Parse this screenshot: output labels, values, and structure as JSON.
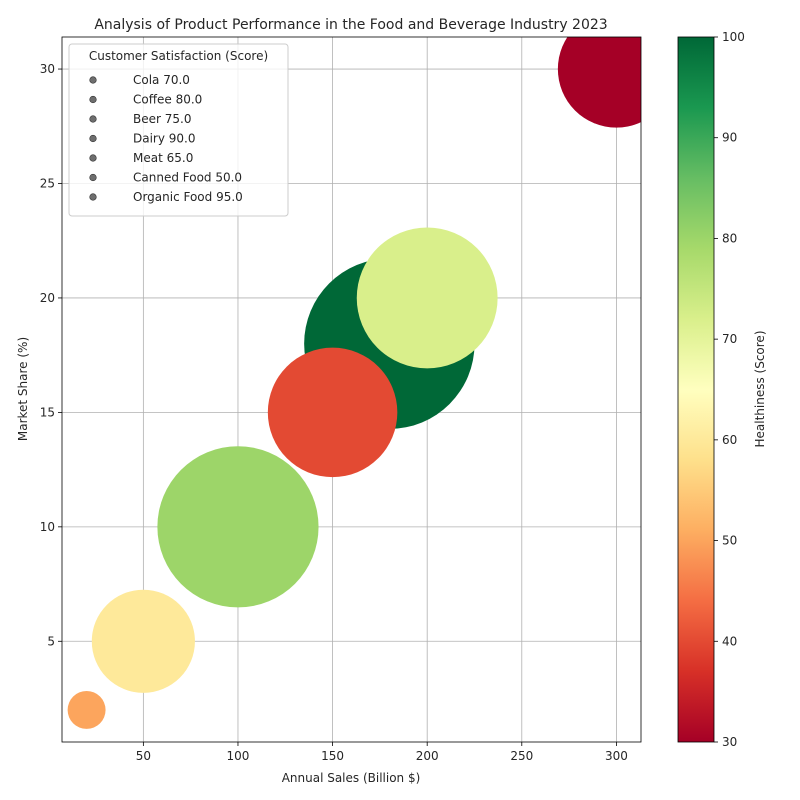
{
  "chart_data": {
    "type": "scatter",
    "title": "Analysis of Product Performance in the Food and Beverage Industry 2023",
    "xlabel": "Annual Sales (Billion $)",
    "ylabel": "Market Share (%)",
    "xlim": [
      7,
      313
    ],
    "ylim": [
      0.6,
      31.4
    ],
    "xticks": [
      50,
      100,
      150,
      200,
      250,
      300
    ],
    "yticks": [
      5,
      10,
      15,
      20,
      25,
      30
    ],
    "grid": true,
    "legend": {
      "title": "Customer Satisfaction (Score)",
      "placement": "top-left"
    },
    "colorbar": {
      "label": "Healthiness (Score)",
      "range": [
        30,
        100
      ],
      "ticks": [
        30,
        40,
        50,
        60,
        70,
        80,
        90,
        100
      ],
      "colormap": [
        "#a50026",
        "#d73027",
        "#f46d43",
        "#fdae61",
        "#fee08b",
        "#ffffbf",
        "#d9ef8b",
        "#a6d96a",
        "#66bd63",
        "#1a9850",
        "#006837"
      ]
    },
    "points": [
      {
        "product": "Cola",
        "sales": 300,
        "share": 30,
        "satisfaction": 70.0,
        "healthiness": 30,
        "size_value": 70
      },
      {
        "product": "Coffee",
        "sales": 200,
        "share": 20,
        "satisfaction": 80.0,
        "healthiness": 72,
        "size_value": 80
      },
      {
        "product": "Beer",
        "sales": 150,
        "share": 15,
        "satisfaction": 75.0,
        "healthiness": 40,
        "size_value": 75
      },
      {
        "product": "Dairy",
        "sales": 100,
        "share": 10,
        "satisfaction": 90.0,
        "healthiness": 80,
        "size_value": 90
      },
      {
        "product": "Meat",
        "sales": 50,
        "share": 5,
        "satisfaction": 65.0,
        "healthiness": 60,
        "size_value": 65
      },
      {
        "product": "Canned Food",
        "sales": 20,
        "share": 2,
        "satisfaction": 50.0,
        "healthiness": 50,
        "size_value": 50
      },
      {
        "product": "Organic Food",
        "sales": 180,
        "share": 18,
        "satisfaction": 95.0,
        "healthiness": 100,
        "size_value": 95
      }
    ]
  }
}
